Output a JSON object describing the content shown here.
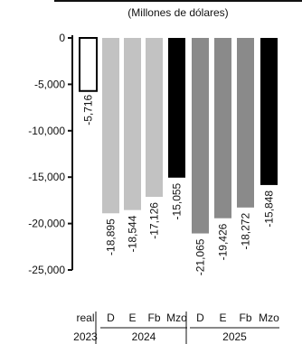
{
  "chart_data": {
    "type": "bar",
    "subtitle": "(Millones de dólares)",
    "ylim": [
      -25000,
      0
    ],
    "y_ticks": [
      0,
      -5000,
      -10000,
      -15000,
      -20000,
      -25000
    ],
    "y_tick_labels": [
      "0",
      "-5,000",
      "-10,000",
      "-15,000",
      "-20,000",
      "-25,000"
    ],
    "categories": [
      "real",
      "D",
      "E",
      "Fb",
      "Mzo",
      "D",
      "E",
      "Fb",
      "Mzo"
    ],
    "values": [
      -5716,
      -18895,
      -18544,
      -17126,
      -15055,
      -21065,
      -19426,
      -18272,
      -15848
    ],
    "value_labels": [
      "-5,716",
      "-18,895",
      "-18,544",
      "-17,126",
      "-15,055",
      "-21,065",
      "-19,426",
      "-18,272",
      "-15,848"
    ],
    "year_groups": [
      {
        "label": "2023",
        "start": 0,
        "end": 0
      },
      {
        "label": "2024",
        "start": 1,
        "end": 4
      },
      {
        "label": "2025",
        "start": 5,
        "end": 8
      }
    ],
    "colors": [
      "#ffffff",
      "#c2c2c2",
      "#c2c2c2",
      "#c2c2c2",
      "#000000",
      "#8a8a8a",
      "#8a8a8a",
      "#8a8a8a",
      "#000000"
    ],
    "bar_outline": "#000000",
    "grid": false
  }
}
